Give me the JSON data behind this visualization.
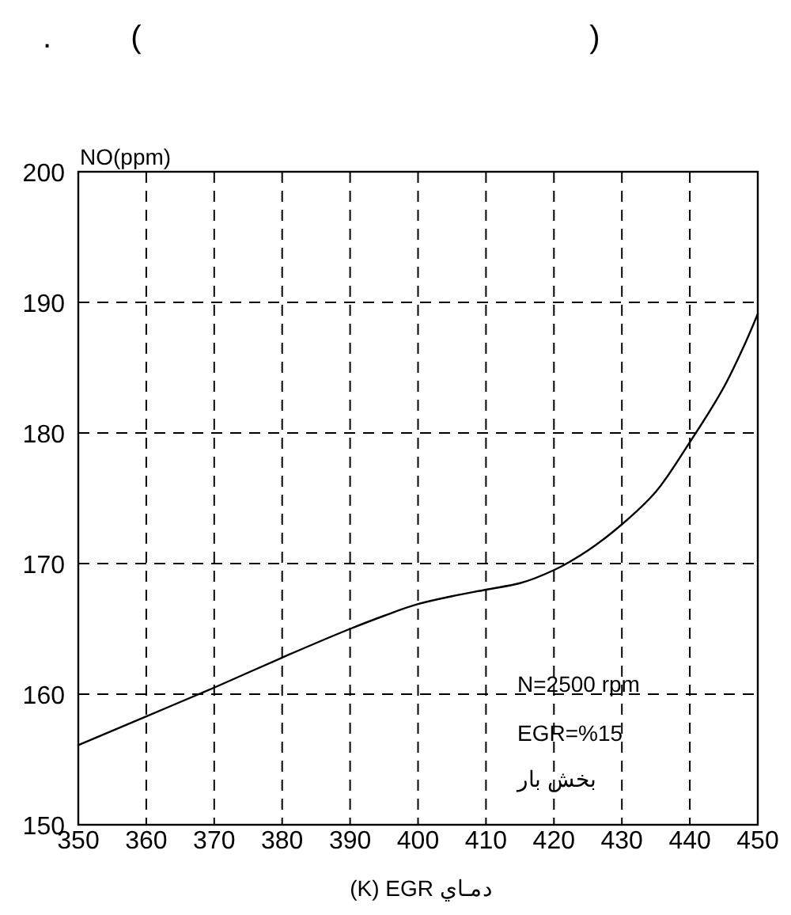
{
  "chart_data": {
    "type": "line",
    "title": ".         (                                                   )",
    "xlabel": "(K) EGR دمـاي",
    "ylabel": "NO(ppm)",
    "annotations": [
      "N=2500 rpm",
      "EGR=%15",
      "بخش بار"
    ],
    "x": [
      350,
      360,
      370,
      380,
      390,
      395,
      400,
      405,
      410,
      415,
      420,
      425,
      430,
      435,
      440,
      445,
      448,
      450
    ],
    "values": [
      156.1,
      158.3,
      160.5,
      162.8,
      165.0,
      166.0,
      166.9,
      167.5,
      168.0,
      168.5,
      169.5,
      171.0,
      173.0,
      175.5,
      179.3,
      183.5,
      186.7,
      189.1
    ],
    "color": "#000000",
    "line_style": "solid",
    "marker": "none",
    "xlim": [
      350,
      450
    ],
    "ylim": [
      150,
      200
    ],
    "xticks": [
      350,
      360,
      370,
      380,
      390,
      400,
      410,
      420,
      430,
      440,
      450
    ],
    "yticks": [
      150,
      160,
      170,
      180,
      190,
      200
    ],
    "grid": true
  }
}
